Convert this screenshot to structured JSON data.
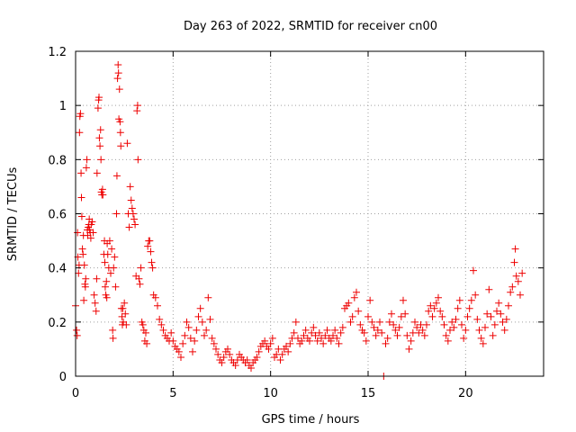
{
  "chart_data": {
    "type": "scatter",
    "title": "Day 263 of 2022, SRMTID for receiver cn00",
    "xlabel": "GPS time / hours",
    "ylabel": "SRMTID / TECUs",
    "xlim": [
      0,
      24
    ],
    "ylim": [
      0,
      1.2
    ],
    "grid": true,
    "marker": "+",
    "xticks": [
      0,
      5,
      10,
      15,
      20
    ],
    "yticks": [
      0,
      0.2,
      0.4,
      0.6,
      0.8,
      1,
      1.2
    ],
    "xtick_labels": [
      "0",
      "5",
      "10",
      "15",
      "20"
    ],
    "ytick_labels": [
      "0",
      "0.2",
      "0.4",
      "0.6",
      "0.8",
      "1",
      "1.2"
    ],
    "series": [
      {
        "name": "SRMTID",
        "color": "#ee0000",
        "points": [
          [
            0.0,
            0.26
          ],
          [
            0.05,
            0.17
          ],
          [
            0.08,
            0.15
          ],
          [
            0.1,
            0.53
          ],
          [
            0.12,
            0.44
          ],
          [
            0.15,
            0.38
          ],
          [
            0.18,
            0.41
          ],
          [
            0.2,
            0.9
          ],
          [
            0.22,
            0.96
          ],
          [
            0.25,
            0.97
          ],
          [
            0.28,
            0.75
          ],
          [
            0.3,
            0.66
          ],
          [
            0.32,
            0.59
          ],
          [
            0.35,
            0.47
          ],
          [
            0.38,
            0.45
          ],
          [
            0.4,
            0.52
          ],
          [
            0.42,
            0.28
          ],
          [
            0.45,
            0.41
          ],
          [
            0.48,
            0.34
          ],
          [
            0.5,
            0.33
          ],
          [
            0.52,
            0.36
          ],
          [
            0.55,
            0.77
          ],
          [
            0.58,
            0.8
          ],
          [
            0.6,
            0.54
          ],
          [
            0.62,
            0.52
          ],
          [
            0.65,
            0.55
          ],
          [
            0.68,
            0.56
          ],
          [
            0.7,
            0.58
          ],
          [
            0.72,
            0.54
          ],
          [
            0.75,
            0.53
          ],
          [
            0.78,
            0.51
          ],
          [
            0.8,
            0.56
          ],
          [
            0.85,
            0.57
          ],
          [
            0.9,
            0.53
          ],
          [
            0.95,
            0.3
          ],
          [
            1.0,
            0.27
          ],
          [
            1.05,
            0.24
          ],
          [
            1.08,
            0.36
          ],
          [
            1.1,
            0.75
          ],
          [
            1.15,
            0.99
          ],
          [
            1.18,
            1.02
          ],
          [
            1.2,
            1.03
          ],
          [
            1.22,
            0.88
          ],
          [
            1.25,
            0.85
          ],
          [
            1.28,
            0.91
          ],
          [
            1.3,
            0.8
          ],
          [
            1.32,
            0.68
          ],
          [
            1.35,
            0.67
          ],
          [
            1.38,
            0.69
          ],
          [
            1.4,
            0.67
          ],
          [
            1.45,
            0.45
          ],
          [
            1.48,
            0.5
          ],
          [
            1.5,
            0.42
          ],
          [
            1.52,
            0.33
          ],
          [
            1.55,
            0.3
          ],
          [
            1.58,
            0.35
          ],
          [
            1.6,
            0.29
          ],
          [
            1.62,
            0.49
          ],
          [
            1.65,
            0.45
          ],
          [
            1.7,
            0.4
          ],
          [
            1.75,
            0.5
          ],
          [
            1.8,
            0.38
          ],
          [
            1.85,
            0.47
          ],
          [
            1.9,
            0.17
          ],
          [
            1.92,
            0.14
          ],
          [
            1.95,
            0.4
          ],
          [
            2.0,
            0.44
          ],
          [
            2.05,
            0.33
          ],
          [
            2.1,
            0.6
          ],
          [
            2.12,
            0.74
          ],
          [
            2.15,
            1.1
          ],
          [
            2.18,
            1.15
          ],
          [
            2.2,
            1.12
          ],
          [
            2.22,
            0.95
          ],
          [
            2.25,
            1.06
          ],
          [
            2.28,
            0.94
          ],
          [
            2.3,
            0.9
          ],
          [
            2.32,
            0.85
          ],
          [
            2.35,
            0.25
          ],
          [
            2.38,
            0.22
          ],
          [
            2.4,
            0.19
          ],
          [
            2.42,
            0.25
          ],
          [
            2.45,
            0.2
          ],
          [
            2.5,
            0.27
          ],
          [
            2.55,
            0.23
          ],
          [
            2.6,
            0.19
          ],
          [
            2.65,
            0.86
          ],
          [
            2.7,
            0.6
          ],
          [
            2.75,
            0.55
          ],
          [
            2.8,
            0.7
          ],
          [
            2.85,
            0.65
          ],
          [
            2.9,
            0.62
          ],
          [
            2.95,
            0.6
          ],
          [
            3.0,
            0.58
          ],
          [
            3.05,
            0.56
          ],
          [
            3.1,
            0.37
          ],
          [
            3.15,
            0.98
          ],
          [
            3.18,
            1.0
          ],
          [
            3.2,
            0.8
          ],
          [
            3.25,
            0.36
          ],
          [
            3.3,
            0.34
          ],
          [
            3.35,
            0.4
          ],
          [
            3.4,
            0.2
          ],
          [
            3.45,
            0.19
          ],
          [
            3.5,
            0.17
          ],
          [
            3.55,
            0.13
          ],
          [
            3.6,
            0.16
          ],
          [
            3.65,
            0.12
          ],
          [
            3.7,
            0.48
          ],
          [
            3.75,
            0.5
          ],
          [
            3.8,
            0.5
          ],
          [
            3.85,
            0.46
          ],
          [
            3.9,
            0.42
          ],
          [
            3.95,
            0.4
          ],
          [
            4.0,
            0.3
          ],
          [
            4.1,
            0.29
          ],
          [
            4.2,
            0.26
          ],
          [
            4.3,
            0.21
          ],
          [
            4.4,
            0.19
          ],
          [
            4.5,
            0.17
          ],
          [
            4.6,
            0.15
          ],
          [
            4.7,
            0.14
          ],
          [
            4.8,
            0.13
          ],
          [
            4.9,
            0.16
          ],
          [
            5.0,
            0.13
          ],
          [
            5.1,
            0.11
          ],
          [
            5.2,
            0.1
          ],
          [
            5.3,
            0.09
          ],
          [
            5.4,
            0.07
          ],
          [
            5.5,
            0.12
          ],
          [
            5.6,
            0.15
          ],
          [
            5.7,
            0.2
          ],
          [
            5.8,
            0.18
          ],
          [
            5.9,
            0.14
          ],
          [
            6.0,
            0.09
          ],
          [
            6.1,
            0.13
          ],
          [
            6.2,
            0.17
          ],
          [
            6.3,
            0.22
          ],
          [
            6.4,
            0.25
          ],
          [
            6.5,
            0.2
          ],
          [
            6.6,
            0.15
          ],
          [
            6.7,
            0.17
          ],
          [
            6.8,
            0.29
          ],
          [
            6.9,
            0.21
          ],
          [
            7.0,
            0.14
          ],
          [
            7.1,
            0.12
          ],
          [
            7.2,
            0.1
          ],
          [
            7.3,
            0.08
          ],
          [
            7.4,
            0.06
          ],
          [
            7.5,
            0.05
          ],
          [
            7.6,
            0.07
          ],
          [
            7.7,
            0.09
          ],
          [
            7.8,
            0.1
          ],
          [
            7.9,
            0.08
          ],
          [
            8.0,
            0.06
          ],
          [
            8.1,
            0.05
          ],
          [
            8.2,
            0.04
          ],
          [
            8.3,
            0.06
          ],
          [
            8.4,
            0.08
          ],
          [
            8.5,
            0.07
          ],
          [
            8.6,
            0.06
          ],
          [
            8.7,
            0.05
          ],
          [
            8.8,
            0.06
          ],
          [
            8.9,
            0.04
          ],
          [
            9.0,
            0.03
          ],
          [
            9.1,
            0.05
          ],
          [
            9.2,
            0.06
          ],
          [
            9.3,
            0.07
          ],
          [
            9.4,
            0.09
          ],
          [
            9.5,
            0.11
          ],
          [
            9.6,
            0.12
          ],
          [
            9.7,
            0.13
          ],
          [
            9.8,
            0.11
          ],
          [
            9.9,
            0.1
          ],
          [
            10.0,
            0.12
          ],
          [
            10.1,
            0.14
          ],
          [
            10.2,
            0.07
          ],
          [
            10.3,
            0.08
          ],
          [
            10.4,
            0.1
          ],
          [
            10.5,
            0.06
          ],
          [
            10.6,
            0.08
          ],
          [
            10.7,
            0.1
          ],
          [
            10.8,
            0.11
          ],
          [
            10.9,
            0.09
          ],
          [
            11.0,
            0.12
          ],
          [
            11.1,
            0.14
          ],
          [
            11.2,
            0.16
          ],
          [
            11.3,
            0.2
          ],
          [
            11.4,
            0.14
          ],
          [
            11.5,
            0.12
          ],
          [
            11.6,
            0.13
          ],
          [
            11.7,
            0.15
          ],
          [
            11.8,
            0.17
          ],
          [
            11.9,
            0.14
          ],
          [
            12.0,
            0.13
          ],
          [
            12.1,
            0.16
          ],
          [
            12.2,
            0.18
          ],
          [
            12.3,
            0.15
          ],
          [
            12.4,
            0.13
          ],
          [
            12.5,
            0.16
          ],
          [
            12.6,
            0.14
          ],
          [
            12.7,
            0.12
          ],
          [
            12.8,
            0.15
          ],
          [
            12.9,
            0.17
          ],
          [
            13.0,
            0.14
          ],
          [
            13.1,
            0.13
          ],
          [
            13.2,
            0.15
          ],
          [
            13.3,
            0.17
          ],
          [
            13.4,
            0.14
          ],
          [
            13.5,
            0.12
          ],
          [
            13.6,
            0.16
          ],
          [
            13.7,
            0.18
          ],
          [
            13.8,
            0.25
          ],
          [
            13.9,
            0.26
          ],
          [
            14.0,
            0.27
          ],
          [
            14.1,
            0.2
          ],
          [
            14.2,
            0.22
          ],
          [
            14.3,
            0.29
          ],
          [
            14.4,
            0.31
          ],
          [
            14.5,
            0.24
          ],
          [
            14.6,
            0.19
          ],
          [
            14.7,
            0.17
          ],
          [
            14.8,
            0.16
          ],
          [
            14.9,
            0.13
          ],
          [
            15.0,
            0.22
          ],
          [
            15.1,
            0.28
          ],
          [
            15.2,
            0.2
          ],
          [
            15.3,
            0.18
          ],
          [
            15.4,
            0.15
          ],
          [
            15.5,
            0.17
          ],
          [
            15.6,
            0.2
          ],
          [
            15.7,
            0.16
          ],
          [
            15.8,
            0.0
          ],
          [
            15.9,
            0.12
          ],
          [
            16.0,
            0.14
          ],
          [
            16.1,
            0.2
          ],
          [
            16.2,
            0.23
          ],
          [
            16.3,
            0.19
          ],
          [
            16.4,
            0.17
          ],
          [
            16.5,
            0.15
          ],
          [
            16.6,
            0.18
          ],
          [
            16.7,
            0.22
          ],
          [
            16.8,
            0.28
          ],
          [
            16.9,
            0.23
          ],
          [
            17.0,
            0.15
          ],
          [
            17.1,
            0.1
          ],
          [
            17.2,
            0.13
          ],
          [
            17.3,
            0.16
          ],
          [
            17.4,
            0.2
          ],
          [
            17.5,
            0.18
          ],
          [
            17.6,
            0.16
          ],
          [
            17.7,
            0.19
          ],
          [
            17.8,
            0.17
          ],
          [
            17.9,
            0.15
          ],
          [
            18.0,
            0.19
          ],
          [
            18.1,
            0.24
          ],
          [
            18.2,
            0.26
          ],
          [
            18.3,
            0.22
          ],
          [
            18.4,
            0.25
          ],
          [
            18.5,
            0.27
          ],
          [
            18.6,
            0.29
          ],
          [
            18.7,
            0.24
          ],
          [
            18.8,
            0.22
          ],
          [
            18.9,
            0.19
          ],
          [
            19.0,
            0.15
          ],
          [
            19.1,
            0.13
          ],
          [
            19.2,
            0.17
          ],
          [
            19.3,
            0.2
          ],
          [
            19.4,
            0.18
          ],
          [
            19.5,
            0.21
          ],
          [
            19.6,
            0.25
          ],
          [
            19.7,
            0.28
          ],
          [
            19.8,
            0.19
          ],
          [
            19.9,
            0.14
          ],
          [
            20.0,
            0.17
          ],
          [
            20.1,
            0.22
          ],
          [
            20.2,
            0.25
          ],
          [
            20.3,
            0.28
          ],
          [
            20.4,
            0.39
          ],
          [
            20.5,
            0.3
          ],
          [
            20.6,
            0.21
          ],
          [
            20.7,
            0.17
          ],
          [
            20.8,
            0.14
          ],
          [
            20.9,
            0.12
          ],
          [
            21.0,
            0.18
          ],
          [
            21.1,
            0.23
          ],
          [
            21.2,
            0.32
          ],
          [
            21.3,
            0.22
          ],
          [
            21.4,
            0.15
          ],
          [
            21.5,
            0.19
          ],
          [
            21.6,
            0.24
          ],
          [
            21.7,
            0.27
          ],
          [
            21.8,
            0.23
          ],
          [
            21.9,
            0.2
          ],
          [
            22.0,
            0.17
          ],
          [
            22.1,
            0.21
          ],
          [
            22.2,
            0.26
          ],
          [
            22.3,
            0.31
          ],
          [
            22.4,
            0.33
          ],
          [
            22.5,
            0.42
          ],
          [
            22.55,
            0.47
          ],
          [
            22.6,
            0.37
          ],
          [
            22.7,
            0.35
          ],
          [
            22.8,
            0.3
          ],
          [
            22.9,
            0.38
          ]
        ]
      }
    ]
  }
}
